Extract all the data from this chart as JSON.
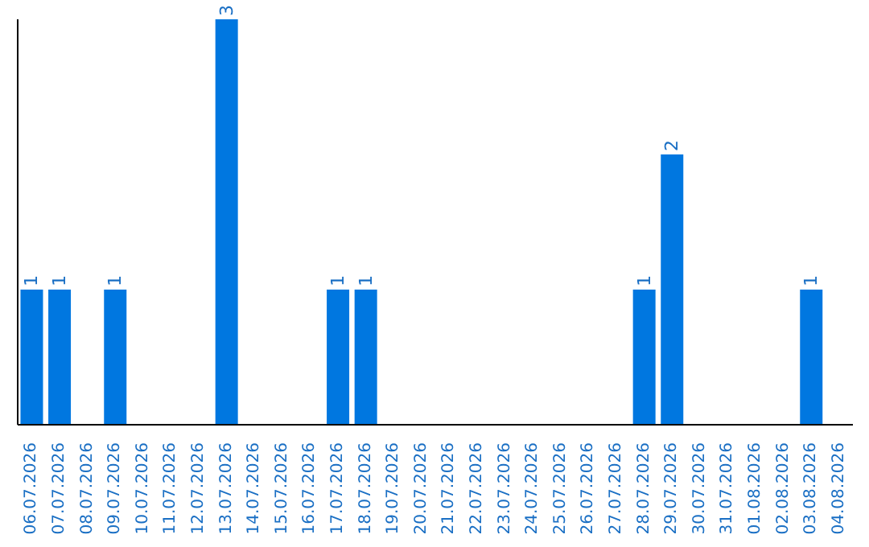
{
  "chart_data": {
    "type": "bar",
    "categories": [
      "06.07.2026",
      "07.07.2026",
      "08.07.2026",
      "09.07.2026",
      "10.07.2026",
      "11.07.2026",
      "12.07.2026",
      "13.07.2026",
      "14.07.2026",
      "15.07.2026",
      "16.07.2026",
      "17.07.2026",
      "18.07.2026",
      "19.07.2026",
      "20.07.2026",
      "21.07.2026",
      "22.07.2026",
      "23.07.2026",
      "24.07.2026",
      "25.07.2026",
      "26.07.2026",
      "27.07.2026",
      "28.07.2026",
      "29.07.2026",
      "30.07.2026",
      "31.07.2026",
      "01.08.2026",
      "02.08.2026",
      "03.08.2026",
      "04.08.2026"
    ],
    "values": [
      1,
      1,
      0,
      1,
      0,
      0,
      0,
      3,
      0,
      0,
      0,
      1,
      1,
      0,
      0,
      0,
      0,
      0,
      0,
      0,
      0,
      0,
      1,
      2,
      0,
      0,
      0,
      0,
      1,
      0
    ],
    "value_labels": [
      "1",
      "1",
      null,
      "1",
      null,
      null,
      null,
      "3",
      null,
      null,
      null,
      "1",
      "1",
      null,
      null,
      null,
      null,
      null,
      null,
      null,
      null,
      null,
      "1",
      "2",
      null,
      null,
      null,
      null,
      "1",
      null
    ],
    "color": "#0077e0",
    "grid": false,
    "legend": false
  }
}
